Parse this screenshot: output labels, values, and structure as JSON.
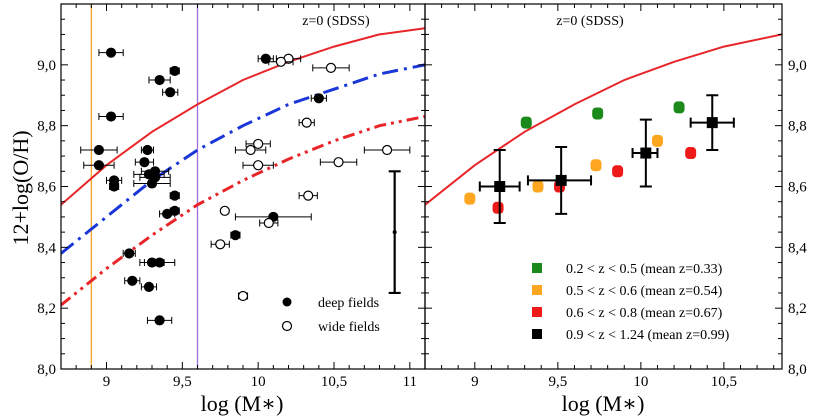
{
  "chart_data": [
    {
      "panel": "left",
      "type": "scatter",
      "xlabel": "log (M∗)",
      "ylabel": "12+log(O/H)",
      "xlim": [
        8.7,
        11.1
      ],
      "ylim": [
        8.0,
        9.2
      ],
      "xticks": [
        "9",
        "9,5",
        "10",
        "10,5",
        "11"
      ],
      "xtick_values": [
        9.0,
        9.5,
        10.0,
        10.5,
        11.0
      ],
      "yticks": [
        "8,0",
        "8,2",
        "8,4",
        "8,6",
        "8,8",
        "9,0"
      ],
      "ytick_values": [
        8.0,
        8.2,
        8.4,
        8.6,
        8.8,
        9.0
      ],
      "annotation": "z=0 (SDSS)",
      "vertical_lines": [
        {
          "x": 8.9,
          "color": "#f5a623"
        },
        {
          "x": 9.6,
          "color": "#9b6fe0"
        }
      ],
      "curves": [
        {
          "style": "solid",
          "color": "#e8262a",
          "x": [
            8.7,
            9.0,
            9.3,
            9.6,
            9.9,
            10.2,
            10.5,
            10.8,
            11.1
          ],
          "y": [
            8.54,
            8.67,
            8.78,
            8.87,
            8.95,
            9.01,
            9.06,
            9.1,
            9.12
          ]
        },
        {
          "style": "dashdot",
          "color": "#1a36d8",
          "x": [
            8.7,
            9.0,
            9.3,
            9.6,
            9.9,
            10.2,
            10.5,
            10.8,
            11.1
          ],
          "y": [
            8.38,
            8.5,
            8.62,
            8.72,
            8.8,
            8.87,
            8.92,
            8.97,
            9.0
          ]
        },
        {
          "style": "dashdotdot",
          "color": "#e8262a",
          "x": [
            8.7,
            9.0,
            9.3,
            9.6,
            9.9,
            10.2,
            10.5,
            10.8,
            11.1
          ],
          "y": [
            8.21,
            8.33,
            8.44,
            8.54,
            8.62,
            8.69,
            8.75,
            8.8,
            8.83
          ]
        }
      ],
      "legend": [
        "deep fields",
        "wide fields"
      ],
      "series": [
        {
          "name": "deep fields",
          "marker": "filled-circle",
          "points": [
            {
              "x": 9.03,
              "y": 9.04,
              "xerr": 0.08
            },
            {
              "x": 9.45,
              "y": 8.98,
              "xerr": 0.03
            },
            {
              "x": 9.35,
              "y": 8.95,
              "xerr": 0.07
            },
            {
              "x": 9.42,
              "y": 8.91,
              "xerr": 0.05
            },
            {
              "x": 9.03,
              "y": 8.83,
              "xerr": 0.08
            },
            {
              "x": 8.95,
              "y": 8.72,
              "xerr": 0.12
            },
            {
              "x": 8.95,
              "y": 8.67,
              "xerr": 0.1
            },
            {
              "x": 9.05,
              "y": 8.62,
              "xerr": 0.05
            },
            {
              "x": 9.05,
              "y": 8.6,
              "xerr": 0.03
            },
            {
              "x": 9.27,
              "y": 8.72,
              "xerr": 0.04
            },
            {
              "x": 9.25,
              "y": 8.68,
              "xerr": 0.06
            },
            {
              "x": 9.32,
              "y": 8.65,
              "xerr": 0.09
            },
            {
              "x": 9.32,
              "y": 8.63,
              "xerr": 0.1
            },
            {
              "x": 9.28,
              "y": 8.64,
              "xerr": 0.1
            },
            {
              "x": 9.3,
              "y": 8.61,
              "xerr": 0.12
            },
            {
              "x": 9.45,
              "y": 8.57,
              "xerr": 0.03
            },
            {
              "x": 9.4,
              "y": 8.51,
              "xerr": 0.05
            },
            {
              "x": 9.45,
              "y": 8.52,
              "xerr": 0.03
            },
            {
              "x": 9.85,
              "y": 8.44,
              "xerr": 0.03
            },
            {
              "x": 9.15,
              "y": 8.38,
              "xerr": 0.04
            },
            {
              "x": 9.3,
              "y": 8.35,
              "xerr": 0.08
            },
            {
              "x": 9.35,
              "y": 8.35,
              "xerr": 0.1
            },
            {
              "x": 9.17,
              "y": 8.29,
              "xerr": 0.05
            },
            {
              "x": 9.28,
              "y": 8.27,
              "xerr": 0.05
            },
            {
              "x": 9.35,
              "y": 8.16,
              "xerr": 0.08
            },
            {
              "x": 10.05,
              "y": 9.02,
              "xerr": 0.05
            },
            {
              "x": 10.4,
              "y": 8.89,
              "xerr": 0.05
            },
            {
              "x": 10.1,
              "y": 8.5,
              "xerr": 0.25
            }
          ]
        },
        {
          "name": "wide fields",
          "marker": "open-circle",
          "points": [
            {
              "x": 10.2,
              "y": 9.02,
              "xerr": 0.08
            },
            {
              "x": 10.15,
              "y": 9.01,
              "xerr": 0.08
            },
            {
              "x": 10.48,
              "y": 8.99,
              "xerr": 0.12
            },
            {
              "x": 10.32,
              "y": 8.81,
              "xerr": 0.05
            },
            {
              "x": 10.0,
              "y": 8.74,
              "xerr": 0.08
            },
            {
              "x": 9.95,
              "y": 8.72,
              "xerr": 0.1
            },
            {
              "x": 10.85,
              "y": 8.72,
              "xerr": 0.15
            },
            {
              "x": 10.0,
              "y": 8.67,
              "xerr": 0.1
            },
            {
              "x": 10.53,
              "y": 8.68,
              "xerr": 0.12
            },
            {
              "x": 10.33,
              "y": 8.57,
              "xerr": 0.06
            },
            {
              "x": 9.78,
              "y": 8.52,
              "xerr": 0.02
            },
            {
              "x": 10.07,
              "y": 8.48,
              "xerr": 0.06
            },
            {
              "x": 9.75,
              "y": 8.41,
              "xerr": 0.06
            },
            {
              "x": 9.9,
              "y": 8.24,
              "xerr": 0.03
            }
          ]
        }
      ],
      "reference_errorbar": {
        "x": 10.9,
        "y": 8.45,
        "ylo": 8.25,
        "yhi": 8.65
      }
    },
    {
      "panel": "right",
      "type": "scatter",
      "xlabel": "log (M∗)",
      "xlim": [
        8.7,
        10.85
      ],
      "ylim": [
        8.0,
        9.2
      ],
      "xticks": [
        "9",
        "9,5",
        "10",
        "10,5"
      ],
      "xtick_values": [
        9.0,
        9.5,
        10.0,
        10.5
      ],
      "yticks": [
        "8,0",
        "8,2",
        "8,4",
        "8,6",
        "8,8",
        "9,0"
      ],
      "ytick_values": [
        8.0,
        8.2,
        8.4,
        8.6,
        8.8,
        9.0
      ],
      "annotation": "z=0 (SDSS)",
      "curves": [
        {
          "style": "solid",
          "color": "#e8262a",
          "x": [
            8.7,
            9.0,
            9.3,
            9.6,
            9.9,
            10.2,
            10.5,
            10.85
          ],
          "y": [
            8.54,
            8.67,
            8.78,
            8.87,
            8.95,
            9.01,
            9.06,
            9.1
          ]
        }
      ],
      "legend": [
        {
          "label": "0.2 < z < 0.5 (mean z=0.33)",
          "color": "#1b8a1b"
        },
        {
          "label": "0.5 < z < 0.6 (mean z=0.54)",
          "color": "#ffa620"
        },
        {
          "label": "0.6 < z < 0.8 (mean z=0.67)",
          "color": "#ee1a1a"
        },
        {
          "label": "0.9 < z < 1.24 (mean z=0.99)",
          "color": "#000000"
        }
      ],
      "series": [
        {
          "name": "0.2 < z < 0.5 (mean z=0.33)",
          "color": "#1b8a1b",
          "points": [
            {
              "x": 9.31,
              "y": 8.81
            },
            {
              "x": 9.74,
              "y": 8.84
            },
            {
              "x": 10.23,
              "y": 8.86
            }
          ]
        },
        {
          "name": "0.5 < z < 0.6 (mean z=0.54)",
          "color": "#ffa620",
          "points": [
            {
              "x": 8.97,
              "y": 8.56
            },
            {
              "x": 9.38,
              "y": 8.6
            },
            {
              "x": 9.73,
              "y": 8.67
            },
            {
              "x": 10.1,
              "y": 8.75
            }
          ]
        },
        {
          "name": "0.6 < z < 0.8 (mean z=0.67)",
          "color": "#ee1a1a",
          "points": [
            {
              "x": 9.14,
              "y": 8.53
            },
            {
              "x": 9.51,
              "y": 8.6
            },
            {
              "x": 9.86,
              "y": 8.65
            },
            {
              "x": 10.3,
              "y": 8.71
            }
          ]
        },
        {
          "name": "0.9 < z < 1.24 (mean z=0.99)",
          "color": "#000000",
          "points": [
            {
              "x": 9.15,
              "y": 8.6,
              "xlo": 9.03,
              "xhi": 9.27,
              "ylo": 8.48,
              "yhi": 8.72
            },
            {
              "x": 9.52,
              "y": 8.62,
              "xlo": 9.32,
              "xhi": 9.7,
              "ylo": 8.51,
              "yhi": 8.73
            },
            {
              "x": 10.03,
              "y": 8.71,
              "xlo": 9.95,
              "xhi": 10.1,
              "ylo": 8.6,
              "yhi": 8.82
            },
            {
              "x": 10.43,
              "y": 8.81,
              "xlo": 10.3,
              "xhi": 10.56,
              "ylo": 8.72,
              "yhi": 8.9
            }
          ]
        }
      ]
    }
  ]
}
